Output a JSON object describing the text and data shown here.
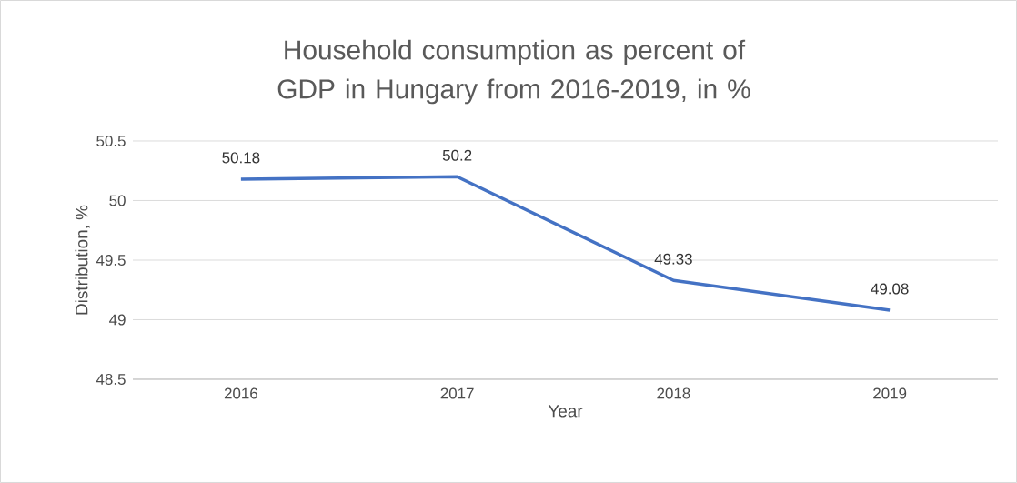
{
  "chart_data": {
    "type": "line",
    "title": "Household consumption as percent of GDP in Hungary from 2016-2019, in %",
    "xlabel": "Year",
    "ylabel": "Distribution, %",
    "categories": [
      "2016",
      "2017",
      "2018",
      "2019"
    ],
    "values": [
      50.18,
      50.2,
      49.33,
      49.08
    ],
    "color": "#4472c4",
    "ylim": [
      48.5,
      50.5
    ],
    "yticks": [
      48.5,
      49,
      49.5,
      50,
      50.5
    ],
    "grid": "y",
    "data_labels": true
  }
}
